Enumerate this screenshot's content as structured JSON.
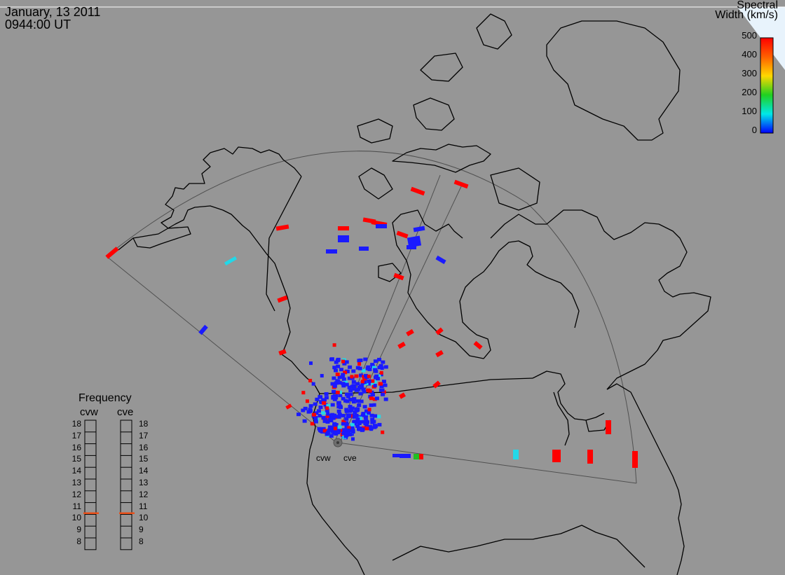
{
  "header": {
    "date": "January, 13 2011",
    "time": "0944:00 UT"
  },
  "colorbar": {
    "title_line1": "Spectral",
    "title_line2": "Width (km/s)",
    "ticks": [
      "500",
      "400",
      "300",
      "200",
      "100",
      "0"
    ],
    "colors": [
      "#ff0000",
      "#ff8000",
      "#ffff00",
      "#00ff00",
      "#00ffff",
      "#0000ff"
    ]
  },
  "radars": {
    "names": [
      "cvw",
      "cve"
    ]
  },
  "frequency": {
    "title": "Frequency",
    "col1": "cvw",
    "col2": "cve",
    "ticks": [
      "18",
      "17",
      "16",
      "15",
      "14",
      "13",
      "12",
      "11",
      "10",
      "9",
      "8"
    ],
    "cvw_value": 10.6,
    "cve_value": 10.6,
    "marker_color": "#e8501a"
  },
  "colors": {
    "background": "#969696",
    "coast": "#000000",
    "fov": "#505050",
    "high": "#ff0000",
    "low": "#1a1aff",
    "mid": "#22d8e8",
    "green": "#20c020"
  }
}
